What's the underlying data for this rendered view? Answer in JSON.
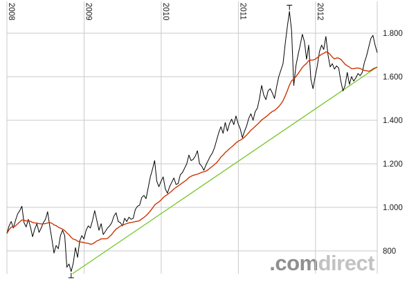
{
  "chart": {
    "watermark": {
      "part1": ".com",
      "part2": "direct",
      "color1": "#8f8f8f",
      "color2": "#c2c2c2"
    },
    "colors": {
      "background": "#ffffff",
      "grid": "#c9c9c9",
      "axis_text": "#1a1a1a",
      "price_line": "#000000",
      "moving_average_line": "#cc3300",
      "trend_line": "#7dc832",
      "marker": "#000000"
    }
  },
  "chart_data": {
    "type": "line",
    "title": "",
    "xlabel": "",
    "ylabel": "",
    "grid": true,
    "legend": false,
    "x_range": [
      2008.0,
      2012.8
    ],
    "x_ticks": [
      2008,
      2009,
      2010,
      2011,
      2012
    ],
    "x_tick_labels": [
      "2008",
      "2009",
      "2010",
      "2011",
      "2012"
    ],
    "y_ticks": [
      800,
      1000,
      1200,
      1400,
      1600,
      1800
    ],
    "y_tick_labels": [
      "800",
      "1.000",
      "1.200",
      "1.400",
      "1.600",
      "1.800"
    ],
    "ylim": [
      690,
      1920
    ],
    "series": [
      {
        "name": "price",
        "type": "line",
        "color": "#000000",
        "values": [
          880,
          915,
          935,
          905,
          940,
          970,
          985,
          1005,
          930,
          910,
          945,
          910,
          865,
          900,
          925,
          885,
          905,
          930,
          945,
          980,
          915,
          855,
          790,
          825,
          810,
          870,
          895,
          870,
          725,
          740,
          705,
          745,
          815,
          770,
          845,
          870,
          855,
          895,
          915,
          905,
          940,
          985,
          940,
          895,
          925,
          875,
          890,
          905,
          915,
          930,
          960,
          975,
          935,
          930,
          915,
          950,
          935,
          955,
          945,
          950,
          990,
          1005,
          1010,
          1045,
          1055,
          1040,
          1090,
          1140,
          1175,
          1215,
          1120,
          1095,
          1120,
          1140,
          1085,
          1065,
          1095,
          1115,
          1135,
          1105,
          1110,
          1150,
          1160,
          1180,
          1200,
          1240,
          1215,
          1220,
          1235,
          1260,
          1200,
          1190,
          1170,
          1195,
          1215,
          1235,
          1250,
          1275,
          1310,
          1345,
          1370,
          1340,
          1390,
          1350,
          1385,
          1405,
          1380,
          1420,
          1385,
          1360,
          1320,
          1350,
          1375,
          1410,
          1430,
          1400,
          1440,
          1455,
          1500,
          1560,
          1515,
          1495,
          1535,
          1545,
          1525,
          1500,
          1555,
          1600,
          1630,
          1660,
          1750,
          1830,
          1900,
          1810,
          1560,
          1650,
          1700,
          1745,
          1795,
          1760,
          1680,
          1745,
          1590,
          1545,
          1600,
          1650,
          1715,
          1745,
          1725,
          1785,
          1700,
          1645,
          1660,
          1635,
          1650,
          1640,
          1580,
          1535,
          1560,
          1620,
          1565,
          1600,
          1580,
          1595,
          1615,
          1605,
          1620,
          1665,
          1695,
          1735,
          1775,
          1790,
          1745,
          1710
        ]
      },
      {
        "name": "moving-average",
        "type": "line",
        "color": "#cc3300",
        "derived": "trailing_mean_window_20_of_price"
      },
      {
        "name": "trendline",
        "type": "line",
        "color": "#7dc832",
        "points": [
          [
            2008.85,
            695
          ],
          [
            2012.8,
            1645
          ]
        ]
      }
    ],
    "markers": {
      "high_value": 1900,
      "low_value": 705
    }
  }
}
